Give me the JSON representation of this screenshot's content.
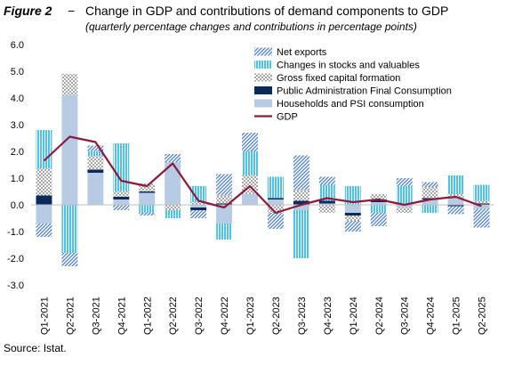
{
  "figure": {
    "label": "Figure 2",
    "dash": "−",
    "title": "Change in GDP and contributions of demand components to GDP",
    "subtitle": "(quarterly percentage changes and contributions in percentage points)",
    "source": "Source: Istat."
  },
  "colors": {
    "households": "#b7cbe5",
    "public_admin": "#0b2a5c",
    "gfcf": "#a6a6a6",
    "stocks": "#4dc3ec",
    "net_exports": "#4f7fbf",
    "gdp": "#8b1a3a",
    "axis": "#bfbfbf"
  },
  "chart_data": {
    "type": "bar",
    "stacked": true,
    "categories": [
      "Q1-2021",
      "Q2-2021",
      "Q3-2021",
      "Q4-2021",
      "Q1-2022",
      "Q2-2022",
      "Q3-2022",
      "Q4-2022",
      "Q1-2023",
      "Q2-2023",
      "Q3-2023",
      "Q4-2023",
      "Q1-2024",
      "Q2-2024",
      "Q3-2024",
      "Q4-2024",
      "Q1-2025",
      "Q2-2025"
    ],
    "ylim": [
      -3.0,
      6.0
    ],
    "yticks": [
      "6.0",
      "5.0",
      "4.0",
      "3.0",
      "2.0",
      "1.0",
      "0.0",
      "-1.0",
      "-2.0",
      "-3.0"
    ],
    "grid": false,
    "legend_position": "top-right",
    "series": [
      {
        "name": "Net exports",
        "key": "net_exports",
        "kind": "bar",
        "pattern": "diagonal",
        "values": [
          -0.5,
          -0.5,
          0.2,
          -0.2,
          -0.1,
          0.3,
          -0.3,
          0.8,
          0.7,
          -0.6,
          1.3,
          0.3,
          -0.4,
          -0.5,
          0.3,
          0.2,
          -0.3,
          -0.7
        ]
      },
      {
        "name": "Changes in stocks and valuables",
        "key": "stocks",
        "kind": "bar",
        "pattern": "vertical",
        "values": [
          1.45,
          -1.8,
          0.2,
          1.8,
          -0.3,
          -0.3,
          0.6,
          -0.6,
          0.9,
          0.8,
          -1.8,
          0.6,
          0.7,
          -0.3,
          0.7,
          -0.3,
          0.7,
          0.6
        ]
      },
      {
        "name": "Gross fixed capital formation",
        "key": "gfcf",
        "kind": "bar",
        "pattern": "checker",
        "values": [
          1.0,
          0.8,
          0.5,
          0.2,
          0.3,
          -0.2,
          0.1,
          0.3,
          0.7,
          -0.3,
          0.4,
          -0.3,
          -0.2,
          0.2,
          -0.2,
          0.4,
          0.1,
          0.1
        ]
      },
      {
        "name": "Public Administration Final Consumption",
        "key": "public_admin",
        "kind": "bar",
        "pattern": "solid",
        "values": [
          0.35,
          0.0,
          0.12,
          0.1,
          0.05,
          0.0,
          -0.1,
          0.05,
          0.0,
          0.05,
          0.15,
          0.1,
          -0.1,
          0.1,
          0.0,
          0.05,
          -0.05,
          0.05
        ]
      },
      {
        "name": "Households and PSI consumption",
        "key": "households",
        "kind": "bar",
        "pattern": "solid",
        "values": [
          -0.7,
          4.1,
          1.2,
          0.2,
          0.45,
          1.6,
          -0.1,
          -0.7,
          0.4,
          0.2,
          -0.2,
          0.05,
          -0.3,
          0.1,
          -0.1,
          0.2,
          0.3,
          -0.15
        ]
      },
      {
        "name": "GDP",
        "key": "gdp",
        "kind": "line",
        "values": [
          1.65,
          2.55,
          2.35,
          0.9,
          0.7,
          1.55,
          0.15,
          -0.1,
          0.7,
          -0.3,
          0.0,
          0.25,
          0.1,
          0.2,
          0.0,
          0.2,
          0.3,
          -0.05
        ]
      }
    ]
  }
}
